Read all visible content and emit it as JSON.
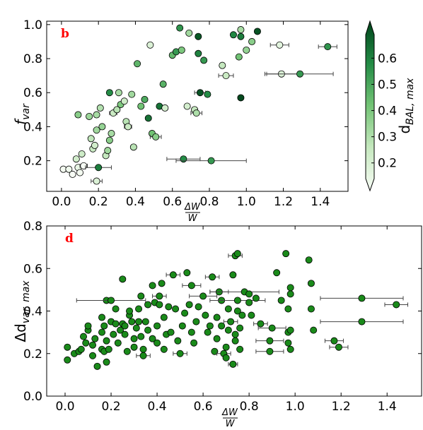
{
  "chart_data": [
    {
      "type": "scatter",
      "panel_label": "b",
      "xlabel": {
        "num": "ΔW",
        "den": "W"
      },
      "ylabel": "f",
      "ylabel_sub": "var",
      "xlim": [
        -0.08,
        1.55
      ],
      "ylim": [
        0.02,
        1.02
      ],
      "xticks": [
        0.0,
        0.2,
        0.4,
        0.6,
        0.8,
        1.0,
        1.2,
        1.4
      ],
      "xtick_labels": [
        "0.0",
        "0.2",
        "0.4",
        "0.6",
        "0.8",
        "1.0",
        "1.2",
        "1.4"
      ],
      "yticks": [
        0.2,
        0.4,
        0.6,
        0.8,
        1.0
      ],
      "ytick_labels": [
        "0.2",
        "0.4",
        "0.6",
        "0.8",
        "1.0"
      ],
      "colorbar": {
        "label": "d",
        "label_sub": "BAL, max",
        "range": [
          0.14,
          0.69
        ],
        "ticks": [
          0.2,
          0.3,
          0.4,
          0.5,
          0.6
        ],
        "tick_labels": [
          "0.2",
          "0.3",
          "0.4",
          "0.5",
          "0.6"
        ],
        "color_low": "#f7fcf5",
        "color_high": "#00441b"
      },
      "points": [
        {
          "x": 0.01,
          "y": 0.15,
          "c": 0.15
        },
        {
          "x": 0.04,
          "y": 0.15,
          "c": 0.16
        },
        {
          "x": 0.06,
          "y": 0.12,
          "c": 0.14
        },
        {
          "x": 0.09,
          "y": 0.16,
          "c": 0.18
        },
        {
          "x": 0.1,
          "y": 0.13,
          "c": 0.15
        },
        {
          "x": 0.12,
          "y": 0.17,
          "c": 0.14,
          "xerr": 0.02
        },
        {
          "x": 0.08,
          "y": 0.21,
          "c": 0.25
        },
        {
          "x": 0.11,
          "y": 0.24,
          "c": 0.26
        },
        {
          "x": 0.09,
          "y": 0.47,
          "c": 0.38
        },
        {
          "x": 0.15,
          "y": 0.46,
          "c": 0.35
        },
        {
          "x": 0.19,
          "y": 0.47,
          "c": 0.33
        },
        {
          "x": 0.21,
          "y": 0.51,
          "c": 0.31
        },
        {
          "x": 0.16,
          "y": 0.33,
          "c": 0.29
        },
        {
          "x": 0.17,
          "y": 0.27,
          "c": 0.27
        },
        {
          "x": 0.18,
          "y": 0.29,
          "c": 0.25
        },
        {
          "x": 0.22,
          "y": 0.4,
          "c": 0.36
        },
        {
          "x": 0.19,
          "y": 0.38,
          "c": 0.34
        },
        {
          "x": 0.2,
          "y": 0.16,
          "c": 0.58,
          "xerr": 0.07
        },
        {
          "x": 0.19,
          "y": 0.08,
          "c": 0.22,
          "xerr": 0.03
        },
        {
          "x": 0.24,
          "y": 0.23,
          "c": 0.28
        },
        {
          "x": 0.25,
          "y": 0.26,
          "c": 0.34
        },
        {
          "x": 0.26,
          "y": 0.32,
          "c": 0.38
        },
        {
          "x": 0.27,
          "y": 0.36,
          "c": 0.33
        },
        {
          "x": 0.26,
          "y": 0.6,
          "c": 0.55
        },
        {
          "x": 0.28,
          "y": 0.48,
          "c": 0.27,
          "xerr": 0.02
        },
        {
          "x": 0.3,
          "y": 0.5,
          "c": 0.3
        },
        {
          "x": 0.31,
          "y": 0.6,
          "c": 0.33
        },
        {
          "x": 0.32,
          "y": 0.53,
          "c": 0.4
        },
        {
          "x": 0.34,
          "y": 0.55,
          "c": 0.26
        },
        {
          "x": 0.35,
          "y": 0.43,
          "c": 0.3
        },
        {
          "x": 0.36,
          "y": 0.4,
          "c": 0.27,
          "xerr": 0.02
        },
        {
          "x": 0.38,
          "y": 0.59,
          "c": 0.34
        },
        {
          "x": 0.39,
          "y": 0.28,
          "c": 0.3
        },
        {
          "x": 0.41,
          "y": 0.77,
          "c": 0.45
        },
        {
          "x": 0.43,
          "y": 0.52,
          "c": 0.42
        },
        {
          "x": 0.45,
          "y": 0.56,
          "c": 0.48
        },
        {
          "x": 0.47,
          "y": 0.45,
          "c": 0.6
        },
        {
          "x": 0.48,
          "y": 0.88,
          "c": 0.22
        },
        {
          "x": 0.49,
          "y": 0.36,
          "c": 0.42
        },
        {
          "x": 0.51,
          "y": 0.34,
          "c": 0.38,
          "xerr": 0.03
        },
        {
          "x": 0.53,
          "y": 0.52,
          "c": 0.6
        },
        {
          "x": 0.55,
          "y": 0.65,
          "c": 0.46
        },
        {
          "x": 0.56,
          "y": 0.51,
          "c": 0.24
        },
        {
          "x": 0.6,
          "y": 0.82,
          "c": 0.44
        },
        {
          "x": 0.62,
          "y": 0.84,
          "c": 0.52
        },
        {
          "x": 0.64,
          "y": 0.98,
          "c": 0.53
        },
        {
          "x": 0.65,
          "y": 0.85,
          "c": 0.4
        },
        {
          "x": 0.66,
          "y": 0.21,
          "c": 0.55,
          "xerr": 0.09
        },
        {
          "x": 0.68,
          "y": 0.52,
          "c": 0.24
        },
        {
          "x": 0.69,
          "y": 0.95,
          "c": 0.34
        },
        {
          "x": 0.72,
          "y": 0.5,
          "c": 0.28
        },
        {
          "x": 0.73,
          "y": 0.48,
          "c": 0.32,
          "xerr": 0.03
        },
        {
          "x": 0.74,
          "y": 0.93,
          "c": 0.65
        },
        {
          "x": 0.74,
          "y": 0.83,
          "c": 0.57
        },
        {
          "x": 0.75,
          "y": 0.6,
          "c": 0.66,
          "xerr": 0.03
        },
        {
          "x": 0.77,
          "y": 0.79,
          "c": 0.52
        },
        {
          "x": 0.79,
          "y": 0.59,
          "c": 0.55
        },
        {
          "x": 0.81,
          "y": 0.2,
          "c": 0.52,
          "xerr": 0.19
        },
        {
          "x": 0.87,
          "y": 0.76,
          "c": 0.28
        },
        {
          "x": 0.89,
          "y": 0.7,
          "c": 0.27,
          "xerr": 0.04
        },
        {
          "x": 0.93,
          "y": 0.94,
          "c": 0.56
        },
        {
          "x": 0.97,
          "y": 0.97,
          "c": 0.33
        },
        {
          "x": 0.97,
          "y": 0.93,
          "c": 0.58
        },
        {
          "x": 0.96,
          "y": 0.81,
          "c": 0.42
        },
        {
          "x": 0.97,
          "y": 0.57,
          "c": 0.68
        },
        {
          "x": 1.0,
          "y": 0.85,
          "c": 0.36
        },
        {
          "x": 1.03,
          "y": 0.9,
          "c": 0.38
        },
        {
          "x": 1.06,
          "y": 0.96,
          "c": 0.66
        },
        {
          "x": 1.18,
          "y": 0.88,
          "c": 0.2,
          "xerr": 0.05
        },
        {
          "x": 1.19,
          "y": 0.71,
          "c": 0.22,
          "xerr": 0.09
        },
        {
          "x": 1.29,
          "y": 0.71,
          "c": 0.52,
          "xerr": 0.18
        },
        {
          "x": 1.44,
          "y": 0.87,
          "c": 0.53,
          "xerr": 0.05
        }
      ]
    },
    {
      "type": "scatter",
      "panel_label": "d",
      "xlabel": {
        "num": "ΔW",
        "den": "W"
      },
      "ylabel": "Δd",
      "ylabel_sub": "var, max",
      "xlim": [
        -0.08,
        1.55
      ],
      "ylim": [
        0.0,
        0.8
      ],
      "xticks": [
        0.0,
        0.2,
        0.4,
        0.6,
        0.8,
        1.0,
        1.2,
        1.4
      ],
      "xtick_labels": [
        "0.0",
        "0.2",
        "0.4",
        "0.6",
        "0.8",
        "1.0",
        "1.2",
        "1.4"
      ],
      "yticks": [
        0.0,
        0.2,
        0.4,
        0.6,
        0.8
      ],
      "ytick_labels": [
        "0.0",
        "0.2",
        "0.4",
        "0.6",
        "0.8"
      ],
      "marker_color": "#1a8a1a",
      "points": [
        {
          "x": 0.01,
          "y": 0.17
        },
        {
          "x": 0.01,
          "y": 0.23
        },
        {
          "x": 0.04,
          "y": 0.2
        },
        {
          "x": 0.06,
          "y": 0.21
        },
        {
          "x": 0.07,
          "y": 0.22
        },
        {
          "x": 0.08,
          "y": 0.28
        },
        {
          "x": 0.09,
          "y": 0.25
        },
        {
          "x": 0.1,
          "y": 0.31
        },
        {
          "x": 0.1,
          "y": 0.33
        },
        {
          "x": 0.12,
          "y": 0.19
        },
        {
          "x": 0.12,
          "y": 0.24
        },
        {
          "x": 0.13,
          "y": 0.27
        },
        {
          "x": 0.14,
          "y": 0.14
        },
        {
          "x": 0.16,
          "y": 0.37
        },
        {
          "x": 0.16,
          "y": 0.3
        },
        {
          "x": 0.16,
          "y": 0.22
        },
        {
          "x": 0.17,
          "y": 0.21
        },
        {
          "x": 0.17,
          "y": 0.33
        },
        {
          "x": 0.18,
          "y": 0.45
        },
        {
          "x": 0.18,
          "y": 0.26
        },
        {
          "x": 0.18,
          "y": 0.16
        },
        {
          "x": 0.19,
          "y": 0.22
        },
        {
          "x": 0.2,
          "y": 0.35
        },
        {
          "x": 0.2,
          "y": 0.45,
          "xerr": 0.15
        },
        {
          "x": 0.21,
          "y": 0.29
        },
        {
          "x": 0.22,
          "y": 0.41
        },
        {
          "x": 0.22,
          "y": 0.34
        },
        {
          "x": 0.23,
          "y": 0.25
        },
        {
          "x": 0.24,
          "y": 0.31
        },
        {
          "x": 0.25,
          "y": 0.34
        },
        {
          "x": 0.25,
          "y": 0.55
        },
        {
          "x": 0.26,
          "y": 0.29
        },
        {
          "x": 0.26,
          "y": 0.33
        },
        {
          "x": 0.27,
          "y": 0.21
        },
        {
          "x": 0.28,
          "y": 0.38
        },
        {
          "x": 0.28,
          "y": 0.4
        },
        {
          "x": 0.29,
          "y": 0.35
        },
        {
          "x": 0.3,
          "y": 0.27
        },
        {
          "x": 0.3,
          "y": 0.23
        },
        {
          "x": 0.31,
          "y": 0.32
        },
        {
          "x": 0.32,
          "y": 0.35
        },
        {
          "x": 0.32,
          "y": 0.41
        },
        {
          "x": 0.33,
          "y": 0.47
        },
        {
          "x": 0.33,
          "y": 0.28
        },
        {
          "x": 0.34,
          "y": 0.22
        },
        {
          "x": 0.34,
          "y": 0.19,
          "xerr": 0.03
        },
        {
          "x": 0.35,
          "y": 0.35
        },
        {
          "x": 0.36,
          "y": 0.31
        },
        {
          "x": 0.36,
          "y": 0.43
        },
        {
          "x": 0.38,
          "y": 0.27
        },
        {
          "x": 0.38,
          "y": 0.52
        },
        {
          "x": 0.39,
          "y": 0.44
        },
        {
          "x": 0.4,
          "y": 0.33
        },
        {
          "x": 0.4,
          "y": 0.25
        },
        {
          "x": 0.41,
          "y": 0.47,
          "xerr": 0.03
        },
        {
          "x": 0.41,
          "y": 0.43
        },
        {
          "x": 0.42,
          "y": 0.53
        },
        {
          "x": 0.43,
          "y": 0.22
        },
        {
          "x": 0.43,
          "y": 0.37
        },
        {
          "x": 0.44,
          "y": 0.29
        },
        {
          "x": 0.45,
          "y": 0.42
        },
        {
          "x": 0.46,
          "y": 0.3
        },
        {
          "x": 0.47,
          "y": 0.57,
          "xerr": 0.03
        },
        {
          "x": 0.48,
          "y": 0.41
        },
        {
          "x": 0.49,
          "y": 0.26
        },
        {
          "x": 0.5,
          "y": 0.2,
          "xerr": 0.03
        },
        {
          "x": 0.51,
          "y": 0.33
        },
        {
          "x": 0.52,
          "y": 0.39
        },
        {
          "x": 0.53,
          "y": 0.58
        },
        {
          "x": 0.54,
          "y": 0.43
        },
        {
          "x": 0.55,
          "y": 0.52,
          "xerr": 0.04
        },
        {
          "x": 0.55,
          "y": 0.3
        },
        {
          "x": 0.56,
          "y": 0.25
        },
        {
          "x": 0.57,
          "y": 0.35
        },
        {
          "x": 0.58,
          "y": 0.42
        },
        {
          "x": 0.6,
          "y": 0.47,
          "xerr": 0.06
        },
        {
          "x": 0.61,
          "y": 0.38
        },
        {
          "x": 0.62,
          "y": 0.3
        },
        {
          "x": 0.63,
          "y": 0.33
        },
        {
          "x": 0.64,
          "y": 0.56,
          "xerr": 0.03
        },
        {
          "x": 0.65,
          "y": 0.21
        },
        {
          "x": 0.66,
          "y": 0.27
        },
        {
          "x": 0.66,
          "y": 0.37
        },
        {
          "x": 0.67,
          "y": 0.49,
          "xerr": 0.04
        },
        {
          "x": 0.68,
          "y": 0.45
        },
        {
          "x": 0.68,
          "y": 0.33
        },
        {
          "x": 0.69,
          "y": 0.2,
          "xerr": 0.03
        },
        {
          "x": 0.7,
          "y": 0.23
        },
        {
          "x": 0.7,
          "y": 0.18
        },
        {
          "x": 0.71,
          "y": 0.41
        },
        {
          "x": 0.71,
          "y": 0.31
        },
        {
          "x": 0.72,
          "y": 0.35,
          "xerr": 0.03
        },
        {
          "x": 0.73,
          "y": 0.57
        },
        {
          "x": 0.73,
          "y": 0.15,
          "xerr": 0.02
        },
        {
          "x": 0.74,
          "y": 0.26
        },
        {
          "x": 0.74,
          "y": 0.29
        },
        {
          "x": 0.74,
          "y": 0.66,
          "xerr": 0.03
        },
        {
          "x": 0.75,
          "y": 0.67
        },
        {
          "x": 0.75,
          "y": 0.45,
          "xerr": 0.12
        },
        {
          "x": 0.75,
          "y": 0.4
        },
        {
          "x": 0.76,
          "y": 0.32
        },
        {
          "x": 0.76,
          "y": 0.22
        },
        {
          "x": 0.77,
          "y": 0.38
        },
        {
          "x": 0.78,
          "y": 0.49,
          "xerr": 0.15
        },
        {
          "x": 0.8,
          "y": 0.48
        },
        {
          "x": 0.8,
          "y": 0.44
        },
        {
          "x": 0.81,
          "y": 0.38
        },
        {
          "x": 0.83,
          "y": 0.46
        },
        {
          "x": 0.85,
          "y": 0.34,
          "xerr": 0.03
        },
        {
          "x": 0.89,
          "y": 0.26,
          "xerr": 0.06
        },
        {
          "x": 0.89,
          "y": 0.21,
          "xerr": 0.06
        },
        {
          "x": 0.9,
          "y": 0.32,
          "xerr": 0.06
        },
        {
          "x": 0.92,
          "y": 0.58
        },
        {
          "x": 0.94,
          "y": 0.45
        },
        {
          "x": 0.96,
          "y": 0.67
        },
        {
          "x": 0.97,
          "y": 0.41
        },
        {
          "x": 0.97,
          "y": 0.3
        },
        {
          "x": 0.97,
          "y": 0.25
        },
        {
          "x": 0.98,
          "y": 0.22
        },
        {
          "x": 0.98,
          "y": 0.51
        },
        {
          "x": 0.98,
          "y": 0.48
        },
        {
          "x": 0.98,
          "y": 0.31
        },
        {
          "x": 1.06,
          "y": 0.64
        },
        {
          "x": 1.07,
          "y": 0.53
        },
        {
          "x": 1.07,
          "y": 0.41
        },
        {
          "x": 1.08,
          "y": 0.31
        },
        {
          "x": 1.17,
          "y": 0.26,
          "xerr": 0.04
        },
        {
          "x": 1.19,
          "y": 0.23,
          "xerr": 0.04
        },
        {
          "x": 1.29,
          "y": 0.46,
          "xerr": 0.18
        },
        {
          "x": 1.29,
          "y": 0.35,
          "xerr": 0.18
        },
        {
          "x": 1.44,
          "y": 0.43,
          "xerr": 0.05
        }
      ]
    }
  ]
}
